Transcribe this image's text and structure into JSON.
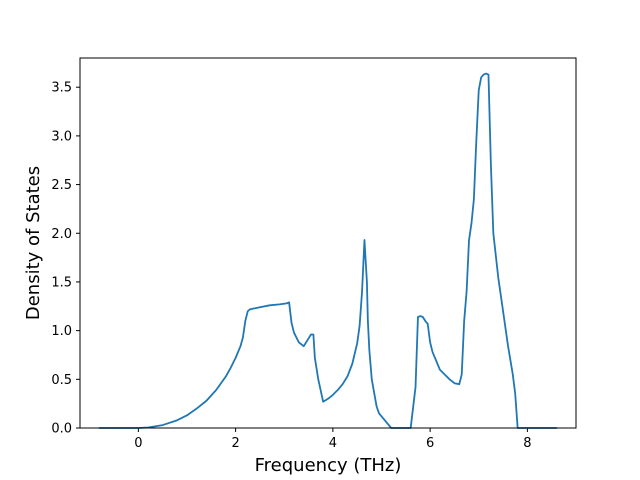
{
  "chart_data": {
    "type": "line",
    "title": "",
    "xlabel": "Frequency (THz)",
    "ylabel": "Density of States",
    "xlim": [
      -1.2,
      9.0
    ],
    "ylim": [
      0.0,
      3.8
    ],
    "xticks": [
      0,
      2,
      4,
      6,
      8
    ],
    "xtick_labels": [
      "0",
      "2",
      "4",
      "6",
      "8"
    ],
    "yticks": [
      0.0,
      0.5,
      1.0,
      1.5,
      2.0,
      2.5,
      3.0,
      3.5
    ],
    "ytick_labels": [
      "0.0",
      "0.5",
      "1.0",
      "1.5",
      "2.0",
      "2.5",
      "3.0",
      "3.5"
    ],
    "grid": false,
    "legend": "none",
    "series": [
      {
        "color": "#1f77b4",
        "x": [
          -0.8,
          0.0,
          0.2,
          0.5,
          0.8,
          1.0,
          1.2,
          1.4,
          1.6,
          1.8,
          1.9,
          2.0,
          2.1,
          2.15,
          2.2,
          2.25,
          2.3,
          2.4,
          2.5,
          2.7,
          2.9,
          3.05,
          3.1,
          3.15,
          3.2,
          3.3,
          3.4,
          3.5,
          3.55,
          3.6,
          3.63,
          3.7,
          3.8,
          3.9,
          4.0,
          4.1,
          4.2,
          4.3,
          4.4,
          4.5,
          4.55,
          4.6,
          4.65,
          4.7,
          4.72,
          4.75,
          4.8,
          4.9,
          4.95,
          5.0,
          5.2,
          5.4,
          5.6,
          5.7,
          5.75,
          5.8,
          5.85,
          5.9,
          5.95,
          6.0,
          6.05,
          6.1,
          6.2,
          6.3,
          6.4,
          6.5,
          6.6,
          6.65,
          6.7,
          6.75,
          6.8,
          6.85,
          6.9,
          6.95,
          7.0,
          7.05,
          7.1,
          7.15,
          7.2,
          7.25,
          7.3,
          7.4,
          7.5,
          7.6,
          7.7,
          7.75,
          7.8,
          7.85,
          8.0,
          8.2,
          8.6
        ],
        "y": [
          0.0,
          0.0,
          0.005,
          0.03,
          0.08,
          0.13,
          0.2,
          0.28,
          0.39,
          0.53,
          0.62,
          0.72,
          0.84,
          0.93,
          1.1,
          1.2,
          1.22,
          1.23,
          1.24,
          1.26,
          1.27,
          1.28,
          1.29,
          1.08,
          0.98,
          0.88,
          0.84,
          0.92,
          0.96,
          0.96,
          0.72,
          0.5,
          0.27,
          0.3,
          0.34,
          0.39,
          0.45,
          0.53,
          0.66,
          0.87,
          1.05,
          1.4,
          1.93,
          1.5,
          1.1,
          0.8,
          0.5,
          0.22,
          0.15,
          0.12,
          0.0,
          0.0,
          0.0,
          0.42,
          1.14,
          1.15,
          1.14,
          1.1,
          1.07,
          0.88,
          0.78,
          0.72,
          0.6,
          0.55,
          0.5,
          0.46,
          0.45,
          0.55,
          1.1,
          1.4,
          1.93,
          2.1,
          2.35,
          2.95,
          3.47,
          3.6,
          3.63,
          3.64,
          3.63,
          2.7,
          2.0,
          1.55,
          1.2,
          0.85,
          0.55,
          0.35,
          0.0,
          0.0,
          0.0,
          0.0,
          0.0
        ]
      }
    ]
  }
}
